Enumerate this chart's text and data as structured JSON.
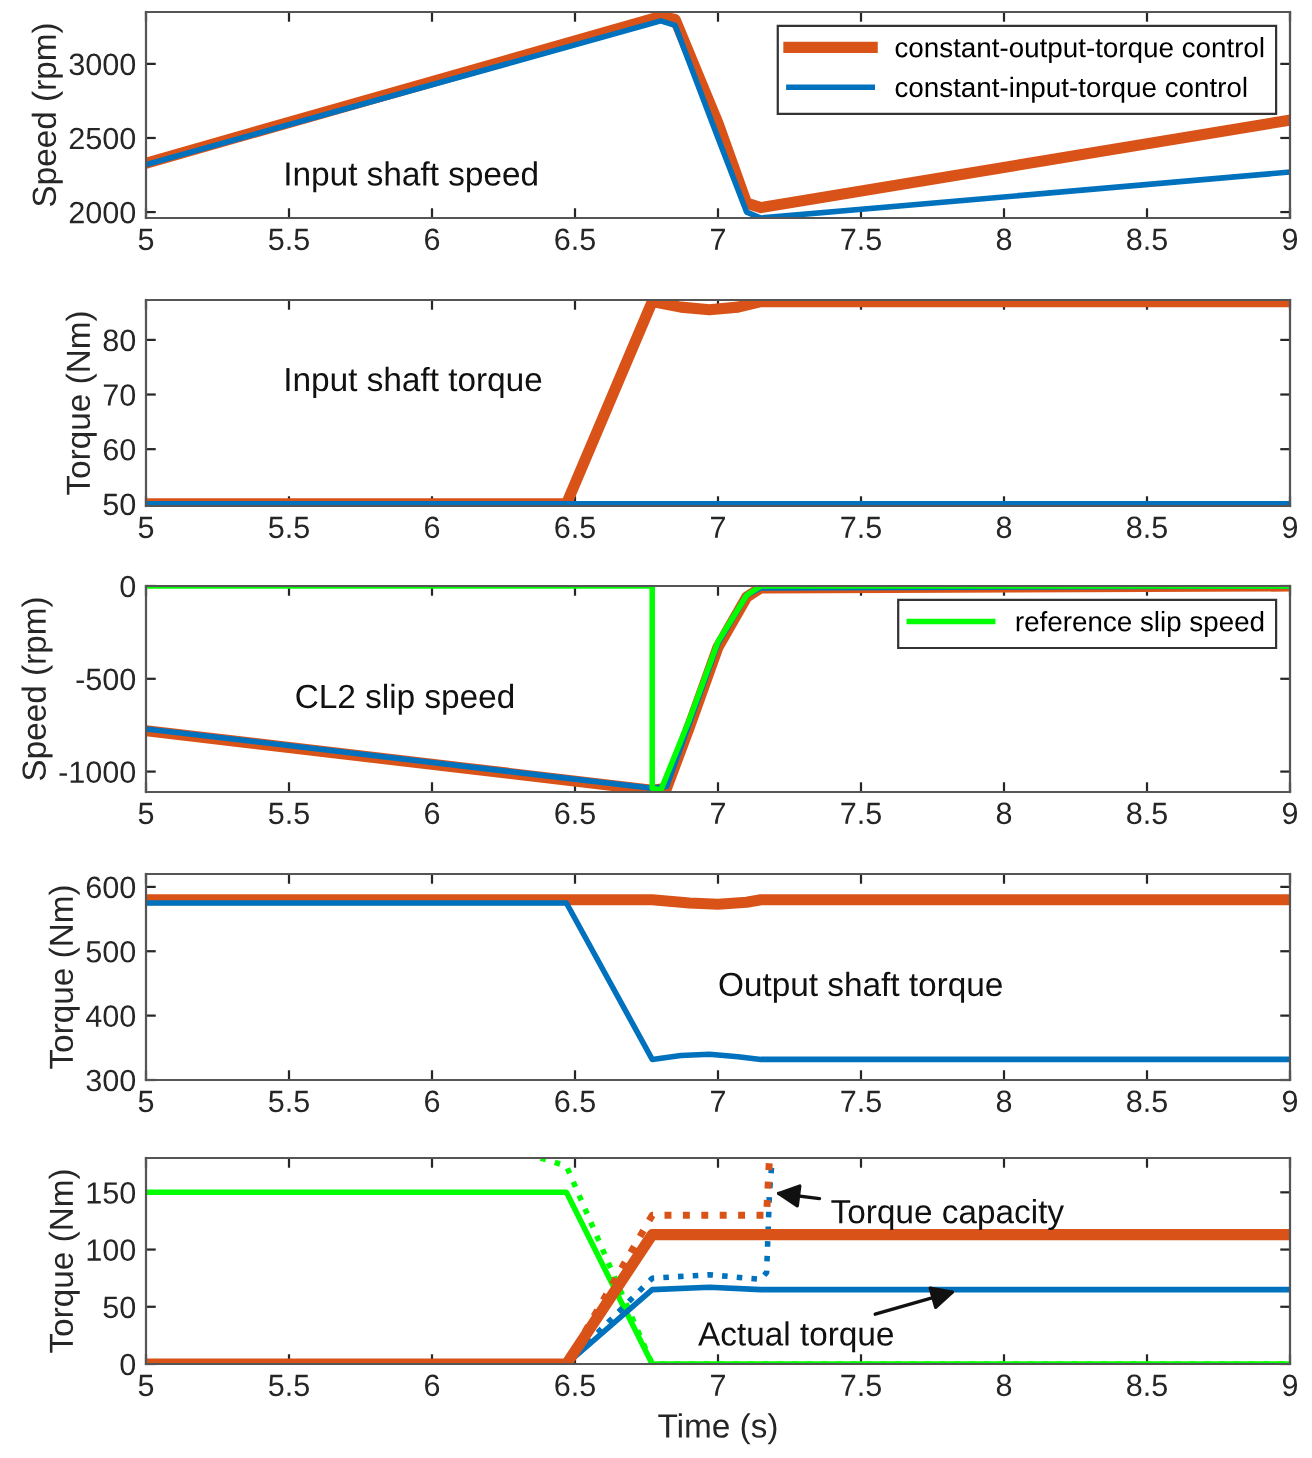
{
  "chart_data": [
    {
      "type": "line",
      "annotations": [
        "Input shaft speed"
      ],
      "ylabel": "Speed (rpm)",
      "xlim": [
        5,
        9
      ],
      "xticks": [
        5,
        5.5,
        6,
        6.5,
        7,
        7.5,
        8,
        8.5,
        9
      ],
      "ylim": [
        1960,
        3350
      ],
      "yticks": [
        2000,
        2500,
        3000
      ],
      "grid": false,
      "legend": "top right",
      "series": [
        {
          "name": "constant-output-torque control",
          "color": "#d95319",
          "x": [
            5,
            6.8,
            6.85,
            7.0,
            7.1,
            7.15,
            9
          ],
          "values": [
            2330,
            3320,
            3300,
            2600,
            2060,
            2030,
            2620
          ]
        },
        {
          "name": "constant-input-torque control",
          "color": "#0072bd",
          "x": [
            5,
            6.8,
            6.85,
            7.0,
            7.1,
            7.15,
            9
          ],
          "values": [
            2320,
            3290,
            3260,
            2500,
            2000,
            1960,
            2270
          ]
        }
      ]
    },
    {
      "type": "line",
      "annotations": [
        "Input shaft torque"
      ],
      "ylabel": "Torque (Nm)",
      "xlim": [
        5,
        9
      ],
      "xticks": [
        5,
        5.5,
        6,
        6.5,
        7,
        7.5,
        8,
        8.5,
        9
      ],
      "ylim": [
        49.6,
        87.3
      ],
      "yticks": [
        50,
        60,
        70,
        80
      ],
      "grid": false,
      "series": [
        {
          "color": "#d95319",
          "x": [
            5,
            6.47,
            6.77,
            6.87,
            6.97,
            7.07,
            7.15,
            9
          ],
          "values": [
            50,
            50,
            87,
            86,
            85.5,
            86,
            87,
            87
          ]
        },
        {
          "color": "#0072bd",
          "x": [
            5,
            9
          ],
          "values": [
            50,
            50
          ]
        }
      ]
    },
    {
      "type": "line",
      "annotations": [
        "CL2 slip speed"
      ],
      "ylabel": "Speed (rpm)",
      "xlim": [
        5,
        9
      ],
      "xticks": [
        5,
        5.5,
        6,
        6.5,
        7,
        7.5,
        8,
        8.5,
        9
      ],
      "ylim": [
        -1110,
        0
      ],
      "yticks": [
        -1000,
        -500,
        0
      ],
      "grid": false,
      "legend": "top right",
      "series": [
        {
          "color": "#d95319",
          "x": [
            5,
            6.77,
            6.82,
            6.9,
            7.0,
            7.1,
            7.15,
            9
          ],
          "values": [
            -780,
            -1100,
            -1090,
            -760,
            -330,
            -60,
            -10,
            0
          ]
        },
        {
          "color": "#0072bd",
          "x": [
            5,
            6.77,
            6.82,
            6.9,
            7.0,
            7.1,
            7.15,
            9
          ],
          "values": [
            -770,
            -1090,
            -1080,
            -740,
            -310,
            -50,
            -10,
            0
          ]
        },
        {
          "name": "reference slip speed",
          "color": "#00ff00",
          "x": [
            5,
            6.77,
            6.77,
            6.8,
            6.9,
            7.0,
            7.1,
            7.15,
            9
          ],
          "values": [
            0,
            0,
            -1090,
            -1100,
            -720,
            -300,
            -50,
            0,
            0
          ]
        }
      ]
    },
    {
      "type": "line",
      "annotations": [
        "Output shaft torque"
      ],
      "ylabel": "Torque (Nm)",
      "xlim": [
        5,
        9
      ],
      "xticks": [
        5,
        5.5,
        6,
        6.5,
        7,
        7.5,
        8,
        8.5,
        9
      ],
      "ylim": [
        300,
        620
      ],
      "yticks": [
        300,
        400,
        500,
        600
      ],
      "grid": false,
      "series": [
        {
          "color": "#d95319",
          "x": [
            5,
            6.77,
            6.9,
            7.0,
            7.1,
            7.15,
            9
          ],
          "values": [
            580,
            580,
            575,
            573,
            576,
            580,
            580
          ]
        },
        {
          "color": "#0072bd",
          "x": [
            5,
            6.47,
            6.77,
            6.87,
            6.97,
            7.07,
            7.15,
            9
          ],
          "values": [
            575,
            575,
            332,
            338,
            340,
            336,
            332,
            332
          ]
        }
      ]
    },
    {
      "type": "line",
      "annotations": [
        {
          "text": "Torque capacity",
          "x": 7.18,
          "y": 150
        },
        {
          "text": "Actual torque",
          "x": 7.85,
          "y": 65
        }
      ],
      "xlabel": "Time (s)",
      "ylabel": "Torque (Nm)",
      "xlim": [
        5,
        9
      ],
      "xticks": [
        5,
        5.5,
        6,
        6.5,
        7,
        7.5,
        8,
        8.5,
        9
      ],
      "ylim": [
        0,
        180
      ],
      "yticks": [
        0,
        50,
        100,
        150
      ],
      "grid": false,
      "series": [
        {
          "color": "#00ff00",
          "x": [
            5,
            6.47,
            6.77,
            9
          ],
          "values": [
            150,
            150,
            0,
            0
          ]
        },
        {
          "color": "#00ff00",
          "line_style": "dotted",
          "x": [
            6.38,
            6.47,
            6.77,
            9
          ],
          "values": [
            180,
            173,
            0,
            0
          ]
        },
        {
          "color": "#0072bd",
          "x": [
            5,
            6.47,
            6.77,
            6.97,
            7.15,
            9
          ],
          "values": [
            0,
            0,
            65,
            67,
            65,
            65
          ]
        },
        {
          "color": "#0072bd",
          "line_style": "dotted",
          "x": [
            6.47,
            6.77,
            6.97,
            7.15,
            7.17,
            7.18,
            7.19
          ],
          "values": [
            0,
            75,
            78,
            74,
            80,
            150,
            180
          ]
        },
        {
          "color": "#d95319",
          "x": [
            5,
            6.47,
            6.77,
            9
          ],
          "values": [
            0,
            0,
            113,
            113
          ]
        },
        {
          "color": "#d95319",
          "line_style": "dotted",
          "x": [
            6.47,
            6.77,
            7.17,
            7.18
          ],
          "values": [
            0,
            130,
            130,
            180
          ]
        }
      ]
    }
  ]
}
